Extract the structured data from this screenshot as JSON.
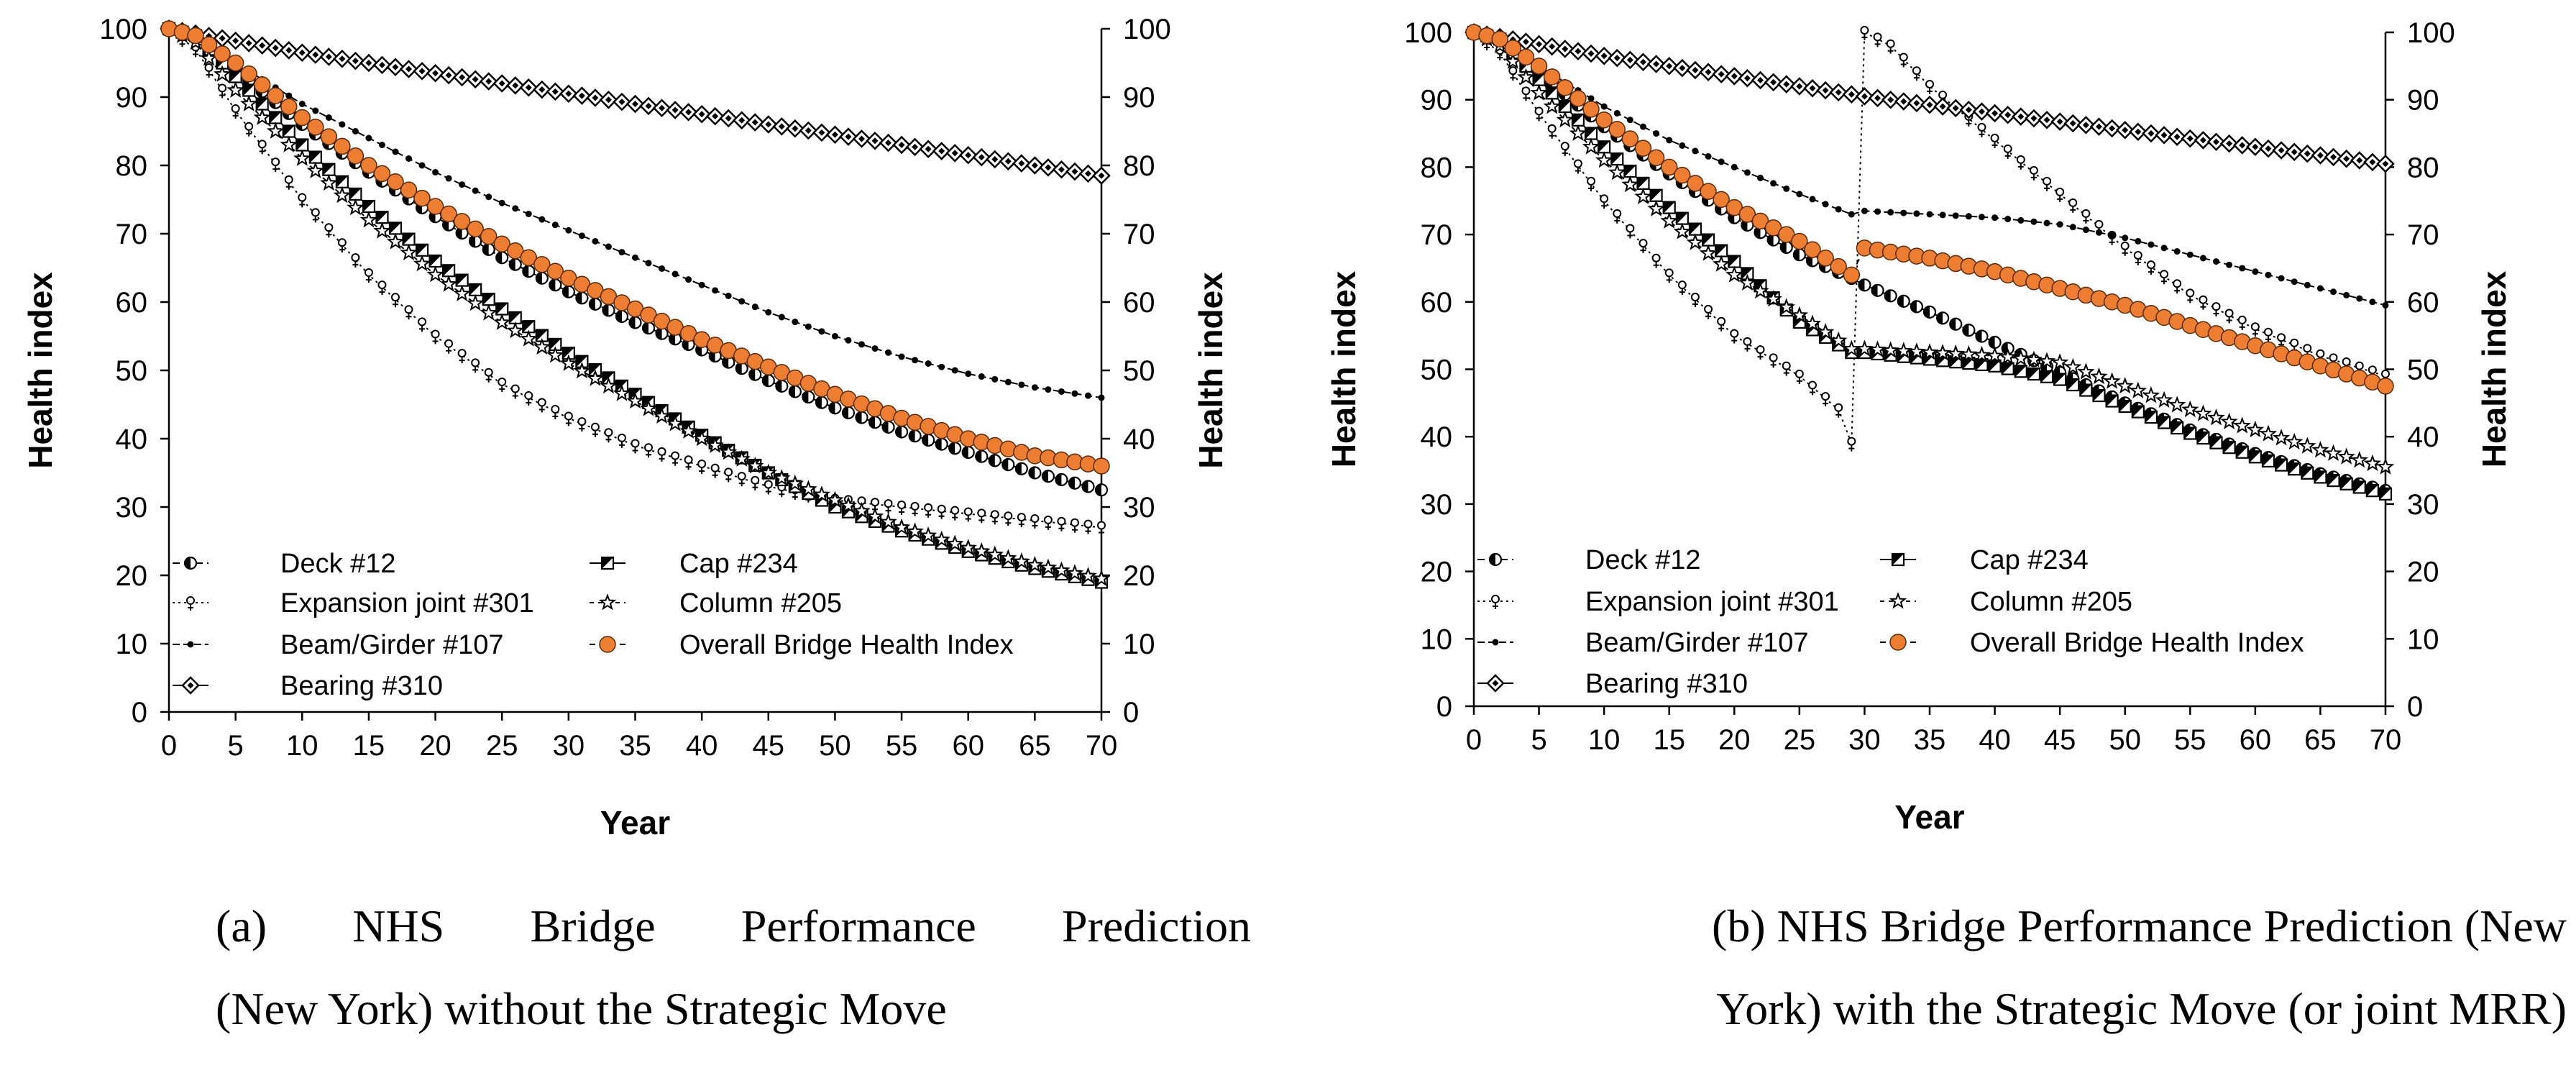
{
  "chart_data": [
    {
      "type": "line",
      "id": "a",
      "caption": [
        "(a)  NHS  Bridge  Performance  Prediction",
        "(New York) without the Strategic Move"
      ],
      "xlabel": "Year",
      "ylabel": "Health index",
      "y2label": "Health index",
      "xlim": [
        0,
        70
      ],
      "ylim": [
        0,
        100
      ],
      "xticks": [
        "0",
        "5",
        "10",
        "15",
        "20",
        "25",
        "30",
        "35",
        "40",
        "45",
        "50",
        "55",
        "60",
        "65",
        "70"
      ],
      "yticks": [
        "0",
        "10",
        "20",
        "30",
        "40",
        "50",
        "60",
        "70",
        "80",
        "90",
        "100"
      ],
      "legend": {
        "col1": [
          "Deck #12",
          "Expansion joint #301",
          "Beam/Girder #107",
          "Bearing #310"
        ],
        "col2": [
          "Cap #234",
          "Column #205",
          "Overall Bridge Health Index"
        ]
      },
      "series": [
        {
          "name": "Deck #12",
          "marker": "half-circle",
          "points": [
            [
              0,
              100
            ],
            [
              2,
              99
            ],
            [
              5,
              94
            ],
            [
              10,
              86
            ],
            [
              15,
              79
            ],
            [
              20,
              72.5
            ],
            [
              25,
              66.5
            ],
            [
              30,
              61.5
            ],
            [
              35,
              57
            ],
            [
              40,
              53
            ],
            [
              45,
              48.5
            ],
            [
              50,
              44.5
            ],
            [
              55,
              41
            ],
            [
              60,
              38
            ],
            [
              65,
              35
            ],
            [
              70,
              32.5
            ]
          ]
        },
        {
          "name": "Expansion joint #301",
          "marker": "venus",
          "points": [
            [
              0,
              100
            ],
            [
              2,
              97
            ],
            [
              5,
              88
            ],
            [
              10,
              75
            ],
            [
              15,
              64
            ],
            [
              20,
              55
            ],
            [
              25,
              48
            ],
            [
              30,
              43
            ],
            [
              35,
              39
            ],
            [
              40,
              36
            ],
            [
              45,
              33
            ],
            [
              50,
              31
            ],
            [
              55,
              30
            ],
            [
              60,
              29
            ],
            [
              65,
              28
            ],
            [
              70,
              27
            ]
          ]
        },
        {
          "name": "Beam/Girder #107",
          "marker": "dot",
          "points": [
            [
              0,
              100
            ],
            [
              5,
              95
            ],
            [
              10,
              89
            ],
            [
              15,
              84
            ],
            [
              20,
              79
            ],
            [
              25,
              74.5
            ],
            [
              30,
              70.5
            ],
            [
              35,
              66.5
            ],
            [
              40,
              62.5
            ],
            [
              45,
              58.5
            ],
            [
              50,
              55
            ],
            [
              55,
              52
            ],
            [
              60,
              49.5
            ],
            [
              65,
              47.5
            ],
            [
              70,
              46
            ]
          ]
        },
        {
          "name": "Bearing #310",
          "marker": "diamond",
          "points": [
            [
              0,
              100
            ],
            [
              10,
              96.5
            ],
            [
              20,
              93.5
            ],
            [
              30,
              90.5
            ],
            [
              40,
              87.5
            ],
            [
              50,
              84.5
            ],
            [
              60,
              81.5
            ],
            [
              70,
              78.5
            ]
          ]
        },
        {
          "name": "Cap #234",
          "marker": "half-square",
          "points": [
            [
              0,
              100
            ],
            [
              2,
              99
            ],
            [
              5,
              93
            ],
            [
              10,
              83
            ],
            [
              15,
              74
            ],
            [
              20,
              66
            ],
            [
              25,
              59
            ],
            [
              30,
              52.5
            ],
            [
              35,
              46.5
            ],
            [
              40,
              40.5
            ],
            [
              45,
              35
            ],
            [
              50,
              30
            ],
            [
              55,
              26.5
            ],
            [
              60,
              23.5
            ],
            [
              65,
              21
            ],
            [
              70,
              19
            ]
          ]
        },
        {
          "name": "Column #205",
          "marker": "star",
          "points": [
            [
              0,
              100
            ],
            [
              2,
              98
            ],
            [
              5,
              91
            ],
            [
              10,
              81
            ],
            [
              15,
              72
            ],
            [
              20,
              64
            ],
            [
              25,
              57
            ],
            [
              30,
              51
            ],
            [
              35,
              45.5
            ],
            [
              40,
              40
            ],
            [
              45,
              35
            ],
            [
              50,
              31
            ],
            [
              55,
              27
            ],
            [
              60,
              24
            ],
            [
              65,
              21.5
            ],
            [
              70,
              19.5
            ]
          ]
        },
        {
          "name": "Overall Bridge Health Index",
          "marker": "orange-circle",
          "points": [
            [
              0,
              100
            ],
            [
              2,
              99
            ],
            [
              5,
              95
            ],
            [
              10,
              87
            ],
            [
              15,
              80
            ],
            [
              20,
              74
            ],
            [
              25,
              68.5
            ],
            [
              30,
              63.5
            ],
            [
              35,
              59
            ],
            [
              40,
              54.5
            ],
            [
              45,
              50.5
            ],
            [
              50,
              46.5
            ],
            [
              55,
              43
            ],
            [
              60,
              40
            ],
            [
              65,
              37.5
            ],
            [
              70,
              36
            ]
          ]
        }
      ]
    },
    {
      "type": "line",
      "id": "b",
      "caption": [
        "(b) NHS Bridge Performance Prediction (New",
        "York) with the Strategic Move (or joint MRR)"
      ],
      "xlabel": "Year",
      "ylabel": "Health index",
      "y2label": "Health index",
      "xlim": [
        0,
        70
      ],
      "ylim": [
        0,
        100
      ],
      "xticks": [
        "0",
        "5",
        "10",
        "15",
        "20",
        "25",
        "30",
        "35",
        "40",
        "45",
        "50",
        "55",
        "60",
        "65",
        "70"
      ],
      "yticks": [
        "0",
        "10",
        "20",
        "30",
        "40",
        "50",
        "60",
        "70",
        "80",
        "90",
        "100"
      ],
      "legend": {
        "col1": [
          "Deck #12",
          "Expansion joint #301",
          "Beam/Girder #107",
          "Bearing #310"
        ],
        "col2": [
          "Cap #234",
          "Column #205",
          "Overall Bridge Health Index"
        ]
      },
      "series": [
        {
          "name": "Deck #12",
          "marker": "half-circle",
          "points": [
            [
              0,
              100
            ],
            [
              2,
              99
            ],
            [
              5,
              94
            ],
            [
              10,
              86
            ],
            [
              15,
              79
            ],
            [
              20,
              72.5
            ],
            [
              25,
              67
            ],
            [
              29,
              63.5
            ],
            [
              30,
              62.5
            ],
            [
              35,
              58.5
            ],
            [
              40,
              54
            ],
            [
              45,
              49.5
            ],
            [
              50,
              45
            ],
            [
              55,
              41
            ],
            [
              60,
              37.5
            ],
            [
              65,
              34.5
            ],
            [
              70,
              32
            ]
          ]
        },
        {
          "name": "Expansion joint #301",
          "marker": "venus",
          "points": [
            [
              0,
              100
            ],
            [
              2,
              97
            ],
            [
              5,
              88
            ],
            [
              10,
              75
            ],
            [
              15,
              64
            ],
            [
              20,
              55
            ],
            [
              25,
              49
            ],
            [
              28,
              44
            ],
            [
              29,
              39
            ],
            [
              30,
              100
            ],
            [
              32,
              98
            ],
            [
              35,
              92
            ],
            [
              40,
              84
            ],
            [
              45,
              76
            ],
            [
              50,
              68
            ],
            [
              55,
              61
            ],
            [
              60,
              56
            ],
            [
              65,
              52
            ],
            [
              70,
              49
            ]
          ]
        },
        {
          "name": "Beam/Girder #107",
          "marker": "dot",
          "points": [
            [
              0,
              100
            ],
            [
              5,
              95
            ],
            [
              10,
              89
            ],
            [
              15,
              84
            ],
            [
              20,
              80
            ],
            [
              25,
              76
            ],
            [
              29,
              73
            ],
            [
              30,
              73.5
            ],
            [
              35,
              73
            ],
            [
              40,
              72.5
            ],
            [
              45,
              71.5
            ],
            [
              50,
              69.5
            ],
            [
              55,
              67
            ],
            [
              60,
              64.5
            ],
            [
              65,
              62
            ],
            [
              70,
              59.5
            ]
          ]
        },
        {
          "name": "Bearing #310",
          "marker": "diamond",
          "points": [
            [
              0,
              100
            ],
            [
              10,
              96.5
            ],
            [
              20,
              93.5
            ],
            [
              30,
              90.5
            ],
            [
              40,
              88
            ],
            [
              50,
              85.5
            ],
            [
              60,
              83
            ],
            [
              70,
              80.5
            ]
          ]
        },
        {
          "name": "Cap #234",
          "marker": "half-square",
          "points": [
            [
              0,
              100
            ],
            [
              2,
              99
            ],
            [
              5,
              93
            ],
            [
              10,
              83
            ],
            [
              15,
              74
            ],
            [
              20,
              66
            ],
            [
              25,
              57
            ],
            [
              29,
              52.5
            ],
            [
              30,
              52.5
            ],
            [
              35,
              51.5
            ],
            [
              40,
              50.5
            ],
            [
              45,
              48.5
            ],
            [
              50,
              44.5
            ],
            [
              55,
              40.5
            ],
            [
              60,
              37
            ],
            [
              65,
              34
            ],
            [
              70,
              31.5
            ]
          ]
        },
        {
          "name": "Column #205",
          "marker": "star",
          "points": [
            [
              0,
              100
            ],
            [
              2,
              98
            ],
            [
              5,
              91
            ],
            [
              10,
              81
            ],
            [
              15,
              72
            ],
            [
              20,
              64
            ],
            [
              25,
              58
            ],
            [
              29,
              53
            ],
            [
              30,
              53
            ],
            [
              35,
              52.5
            ],
            [
              40,
              52
            ],
            [
              45,
              51
            ],
            [
              50,
              47.5
            ],
            [
              55,
              44
            ],
            [
              60,
              41
            ],
            [
              65,
              38
            ],
            [
              70,
              35.5
            ]
          ]
        },
        {
          "name": "Overall Bridge Health Index",
          "marker": "orange-circle",
          "points": [
            [
              0,
              100
            ],
            [
              2,
              99
            ],
            [
              5,
              95
            ],
            [
              10,
              87
            ],
            [
              15,
              80
            ],
            [
              20,
              74
            ],
            [
              25,
              69
            ],
            [
              29,
              64
            ],
            [
              30,
              68
            ],
            [
              35,
              66.5
            ],
            [
              40,
              64.5
            ],
            [
              45,
              62
            ],
            [
              50,
              59.5
            ],
            [
              55,
              56.5
            ],
            [
              60,
              53.5
            ],
            [
              65,
              50.5
            ],
            [
              70,
              47.5
            ]
          ]
        }
      ]
    }
  ]
}
